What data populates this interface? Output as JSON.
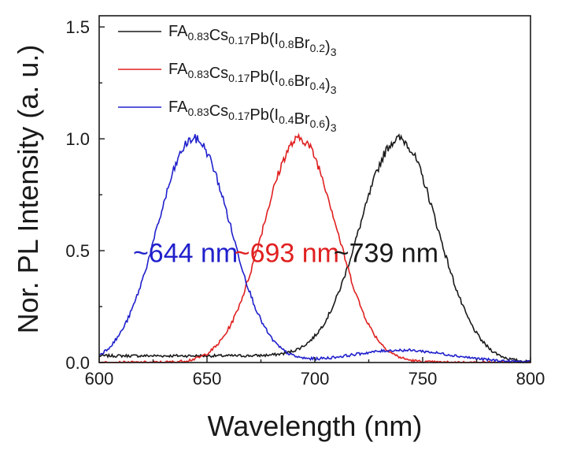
{
  "chart_data": {
    "type": "line",
    "xlabel": "Wavelength (nm)",
    "ylabel": "Nor. PL Intensity (a. u.)",
    "xlim": [
      600,
      800
    ],
    "ylim": [
      0.0,
      1.55
    ],
    "xticks": [
      "600",
      "650",
      "700",
      "750",
      "800"
    ],
    "yticks": [
      "0.0",
      "0.5",
      "1.0",
      "1.5"
    ],
    "xtick_values": [
      600,
      650,
      700,
      750,
      800
    ],
    "ytick_values": [
      0.0,
      0.5,
      1.0,
      1.5
    ],
    "grid": false,
    "legend_position": "top-left",
    "series": [
      {
        "name": "FA0.83Cs0.17Pb(I0.8Br0.2)3",
        "name_parts": [
          {
            "t": "FA"
          },
          {
            "t": "0.83",
            "sub": true
          },
          {
            "t": "Cs"
          },
          {
            "t": "0.17",
            "sub": true
          },
          {
            "t": "Pb(I"
          },
          {
            "t": "0.8",
            "sub": true
          },
          {
            "t": "Br"
          },
          {
            "t": "0.2",
            "sub": true
          },
          {
            "t": ")"
          },
          {
            "t": "3",
            "sub": true
          }
        ],
        "color": "#1a1a1a",
        "peak_nm": 739,
        "fwhm_nm": 42,
        "base_left": 0.03,
        "base_right": 0.0
      },
      {
        "name": "FA0.83Cs0.17Pb(I0.6Br0.4)3",
        "name_parts": [
          {
            "t": "FA"
          },
          {
            "t": "0.83",
            "sub": true
          },
          {
            "t": "Cs"
          },
          {
            "t": "0.17",
            "sub": true
          },
          {
            "t": "Pb(I"
          },
          {
            "t": "0.6",
            "sub": true
          },
          {
            "t": "Br"
          },
          {
            "t": "0.4",
            "sub": true
          },
          {
            "t": ")"
          },
          {
            "t": "3",
            "sub": true
          }
        ],
        "color": "#e02020",
        "peak_nm": 693,
        "fwhm_nm": 40,
        "base_left": 0.0,
        "base_right": 0.0
      },
      {
        "name": "FA0.83Cs0.17Pb(I0.4Br0.6)3",
        "name_parts": [
          {
            "t": "FA"
          },
          {
            "t": "0.83",
            "sub": true
          },
          {
            "t": "Cs"
          },
          {
            "t": "0.17",
            "sub": true
          },
          {
            "t": "Pb(I"
          },
          {
            "t": "0.4",
            "sub": true
          },
          {
            "t": "Br"
          },
          {
            "t": "0.6",
            "sub": true
          },
          {
            "t": ")"
          },
          {
            "t": "3",
            "sub": true
          }
        ],
        "color": "#2020cc",
        "peak_nm": 644,
        "fwhm_nm": 40,
        "base_left": 0.0,
        "base_right": 0.0,
        "secondary_hump": {
          "center_nm": 740,
          "height": 0.055,
          "width_nm": 55
        }
      }
    ],
    "annotations": [
      {
        "text": "~644 nm",
        "color": "#2020cc",
        "x": 640,
        "y": 0.45
      },
      {
        "text": "~693 nm",
        "color": "#e02020",
        "x": 687,
        "y": 0.45
      },
      {
        "text": "~739 nm",
        "color": "#1a1a1a",
        "x": 733,
        "y": 0.45
      }
    ]
  }
}
